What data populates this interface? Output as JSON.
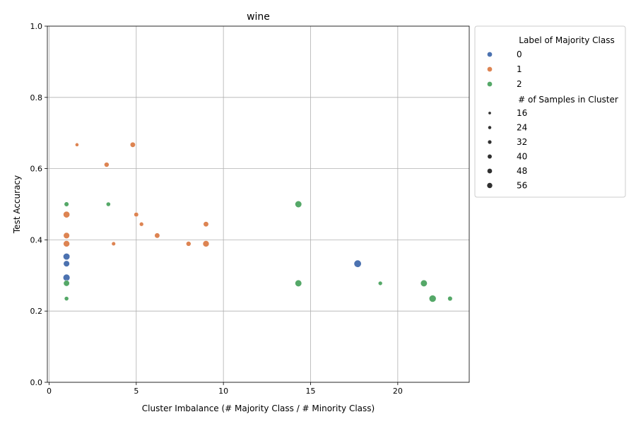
{
  "chart_data": {
    "type": "scatter",
    "title": "wine",
    "xlabel": "Cluster Imbalance (# Majority Class / # Minority Class)",
    "ylabel": "Test Accuracy",
    "xlim": [
      -0.1,
      24.1
    ],
    "ylim": [
      0.0,
      1.0
    ],
    "xticks": [
      0,
      5,
      10,
      15,
      20
    ],
    "yticks": [
      0.0,
      0.2,
      0.4,
      0.6,
      0.8,
      1.0
    ],
    "xtick_labels": [
      "0",
      "5",
      "10",
      "15",
      "20"
    ],
    "ytick_labels": [
      "0.0",
      "0.2",
      "0.4",
      "0.6",
      "0.8",
      "1.0"
    ],
    "grid": true,
    "legend_placement": "outside-upper-right",
    "hue_legend": {
      "title": "Label of Majority Class",
      "entries": [
        {
          "label": "0",
          "color": "#4c72b0"
        },
        {
          "label": "1",
          "color": "#dd8452"
        },
        {
          "label": "2",
          "color": "#55a868"
        }
      ]
    },
    "size_legend": {
      "title": "# of Samples in Cluster",
      "entries": [
        {
          "label": "16",
          "value": 16
        },
        {
          "label": "24",
          "value": 24
        },
        {
          "label": "32",
          "value": 32
        },
        {
          "label": "40",
          "value": 40
        },
        {
          "label": "48",
          "value": 48
        },
        {
          "label": "56",
          "value": 56
        }
      ]
    },
    "size_range": [
      16,
      60
    ],
    "points": [
      {
        "x": 1.0,
        "y": 0.353,
        "label": "0",
        "size": 50
      },
      {
        "x": 1.0,
        "y": 0.333,
        "label": "0",
        "size": 44
      },
      {
        "x": 1.0,
        "y": 0.294,
        "label": "0",
        "size": 52
      },
      {
        "x": 17.7,
        "y": 0.333,
        "label": "0",
        "size": 57
      },
      {
        "x": 1.6,
        "y": 0.667,
        "label": "1",
        "size": 16
      },
      {
        "x": 4.8,
        "y": 0.667,
        "label": "1",
        "size": 34
      },
      {
        "x": 3.3,
        "y": 0.611,
        "label": "1",
        "size": 30
      },
      {
        "x": 1.0,
        "y": 0.471,
        "label": "1",
        "size": 48
      },
      {
        "x": 5.0,
        "y": 0.471,
        "label": "1",
        "size": 26
      },
      {
        "x": 5.3,
        "y": 0.444,
        "label": "1",
        "size": 22
      },
      {
        "x": 9.0,
        "y": 0.444,
        "label": "1",
        "size": 34
      },
      {
        "x": 1.0,
        "y": 0.412,
        "label": "1",
        "size": 44
      },
      {
        "x": 6.2,
        "y": 0.412,
        "label": "1",
        "size": 34
      },
      {
        "x": 1.0,
        "y": 0.389,
        "label": "1",
        "size": 46
      },
      {
        "x": 3.7,
        "y": 0.389,
        "label": "1",
        "size": 20
      },
      {
        "x": 8.0,
        "y": 0.389,
        "label": "1",
        "size": 30
      },
      {
        "x": 9.0,
        "y": 0.389,
        "label": "1",
        "size": 46
      },
      {
        "x": 1.0,
        "y": 0.5,
        "label": "2",
        "size": 28
      },
      {
        "x": 3.4,
        "y": 0.5,
        "label": "2",
        "size": 24
      },
      {
        "x": 14.3,
        "y": 0.5,
        "label": "2",
        "size": 50
      },
      {
        "x": 1.0,
        "y": 0.278,
        "label": "2",
        "size": 42
      },
      {
        "x": 14.3,
        "y": 0.278,
        "label": "2",
        "size": 50
      },
      {
        "x": 19.0,
        "y": 0.278,
        "label": "2",
        "size": 22
      },
      {
        "x": 21.5,
        "y": 0.278,
        "label": "2",
        "size": 50
      },
      {
        "x": 1.0,
        "y": 0.235,
        "label": "2",
        "size": 24
      },
      {
        "x": 22.0,
        "y": 0.235,
        "label": "2",
        "size": 54
      },
      {
        "x": 23.0,
        "y": 0.235,
        "label": "2",
        "size": 28
      }
    ]
  }
}
